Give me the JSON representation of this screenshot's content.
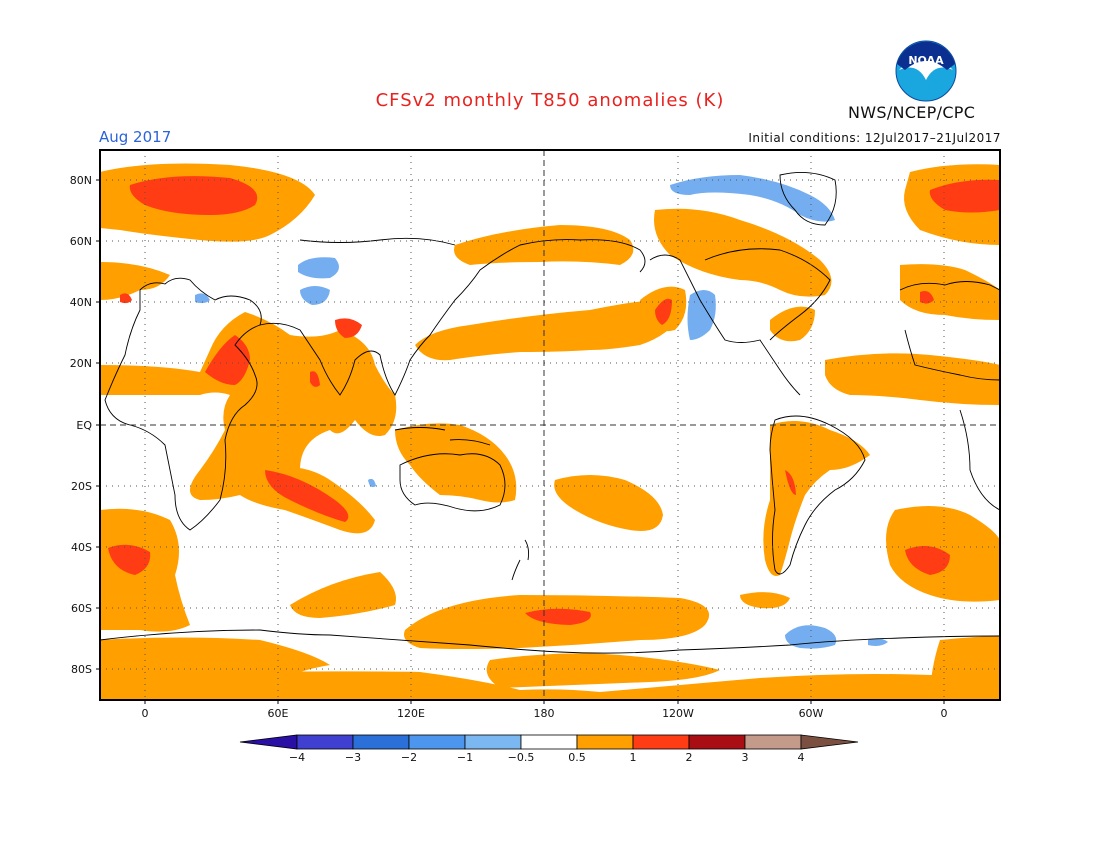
{
  "header": {
    "title": "CFSv2 monthly T850 anomalies (K)",
    "valid_month": "Aug 2017",
    "initial_conditions": "Initial conditions: 12Jul2017–21Jul2017",
    "organization": "NWS/NCEP/CPC",
    "logo_text": "NOAA"
  },
  "map": {
    "lat_labels": [
      "80N",
      "60N",
      "40N",
      "20N",
      "EQ",
      "20S",
      "40S",
      "60S",
      "80S"
    ],
    "lon_labels": [
      "0",
      "60E",
      "120E",
      "180",
      "120W",
      "60W",
      "0"
    ],
    "colors": {
      "warm_05_1": "#ff9f00",
      "warm_1_2": "#ff3c14",
      "cool_05_1": "#74aef0",
      "cool_1_2": "#4f8ee8",
      "land_outline": "#000000",
      "grid": "#555555"
    }
  },
  "legend": {
    "labels": [
      "−4",
      "−3",
      "−2",
      "−1",
      "−0.5",
      "0.5",
      "1",
      "2",
      "3",
      "4"
    ],
    "colors": [
      "#2a10a5",
      "#4040d0",
      "#2a70d8",
      "#4c96ee",
      "#7bb8f2",
      "#ffffff",
      "#ff9f00",
      "#ff3c14",
      "#a90e14",
      "#c49a8a",
      "#7b5040"
    ]
  }
}
